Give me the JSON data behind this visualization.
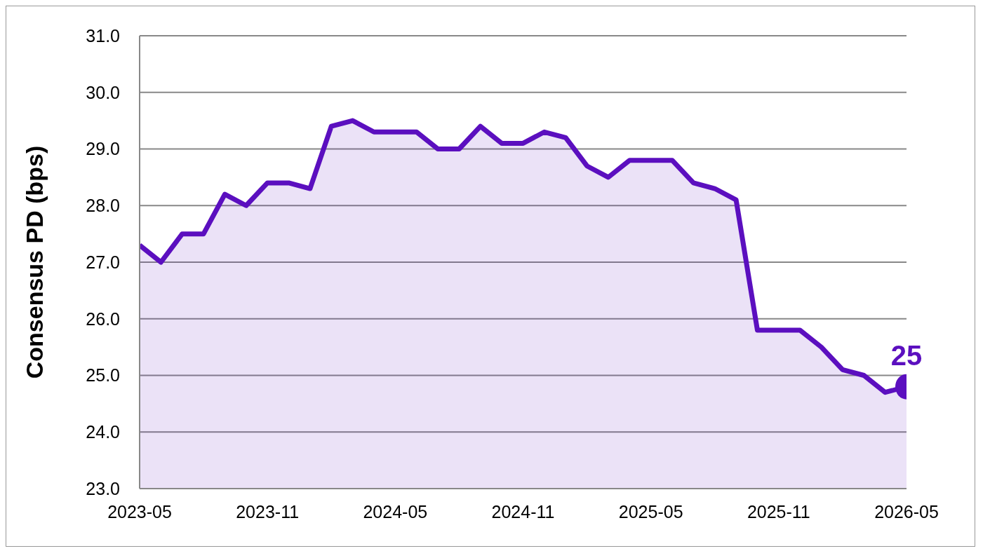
{
  "chart_data": {
    "type": "area",
    "ylabel": "Consensus PD (bps)",
    "series": [
      {
        "color": "#5b0fbf",
        "x": [
          "2023-05",
          "2023-06",
          "2023-07",
          "2023-08",
          "2023-09",
          "2023-10",
          "2023-11",
          "2023-12",
          "2024-01",
          "2024-02",
          "2024-03",
          "2024-04",
          "2024-05",
          "2024-06",
          "2024-07",
          "2024-08",
          "2024-09",
          "2024-10",
          "2024-11",
          "2024-12",
          "2025-01",
          "2025-02",
          "2025-03",
          "2025-04",
          "2025-05",
          "2025-06",
          "2025-07",
          "2025-08",
          "2025-09",
          "2025-10",
          "2025-11",
          "2025-12",
          "2026-01",
          "2026-02",
          "2026-03",
          "2026-04",
          "2026-05"
        ],
        "values": [
          27.3,
          27.0,
          27.5,
          27.5,
          28.2,
          28.0,
          28.4,
          28.4,
          28.3,
          29.4,
          29.5,
          29.3,
          29.3,
          29.3,
          29.0,
          29.0,
          29.4,
          29.1,
          29.1,
          29.3,
          29.2,
          28.7,
          28.5,
          28.8,
          28.8,
          28.8,
          28.4,
          28.3,
          28.1,
          25.8,
          25.8,
          25.8,
          25.5,
          25.1,
          25.0,
          24.7,
          24.8
        ]
      },
      {
        "type": "scatter",
        "color": "#5b0fbf",
        "marker": "circle",
        "x": [
          "2026-05"
        ],
        "values": [
          24.8
        ],
        "value_labels": [
          "25"
        ]
      }
    ],
    "xlim": [
      "2023-05",
      "2026-05"
    ],
    "xticks": [
      "2023-05",
      "2023-11",
      "2024-05",
      "2024-11",
      "2025-05",
      "2025-11",
      "2026-05"
    ],
    "ylim": [
      23,
      31
    ],
    "yticks": [
      {
        "value": 23,
        "label": "23.0"
      },
      {
        "value": 24,
        "label": "24.0"
      },
      {
        "value": 25,
        "label": "25.0"
      },
      {
        "value": 26,
        "label": "26.0"
      },
      {
        "value": 27,
        "label": "27.0"
      },
      {
        "value": 28,
        "label": "28.0"
      },
      {
        "value": 29,
        "label": "29.0"
      },
      {
        "value": 30,
        "label": "30.0"
      },
      {
        "value": 31,
        "label": "31.0"
      }
    ],
    "grid": "y",
    "legend": false
  }
}
